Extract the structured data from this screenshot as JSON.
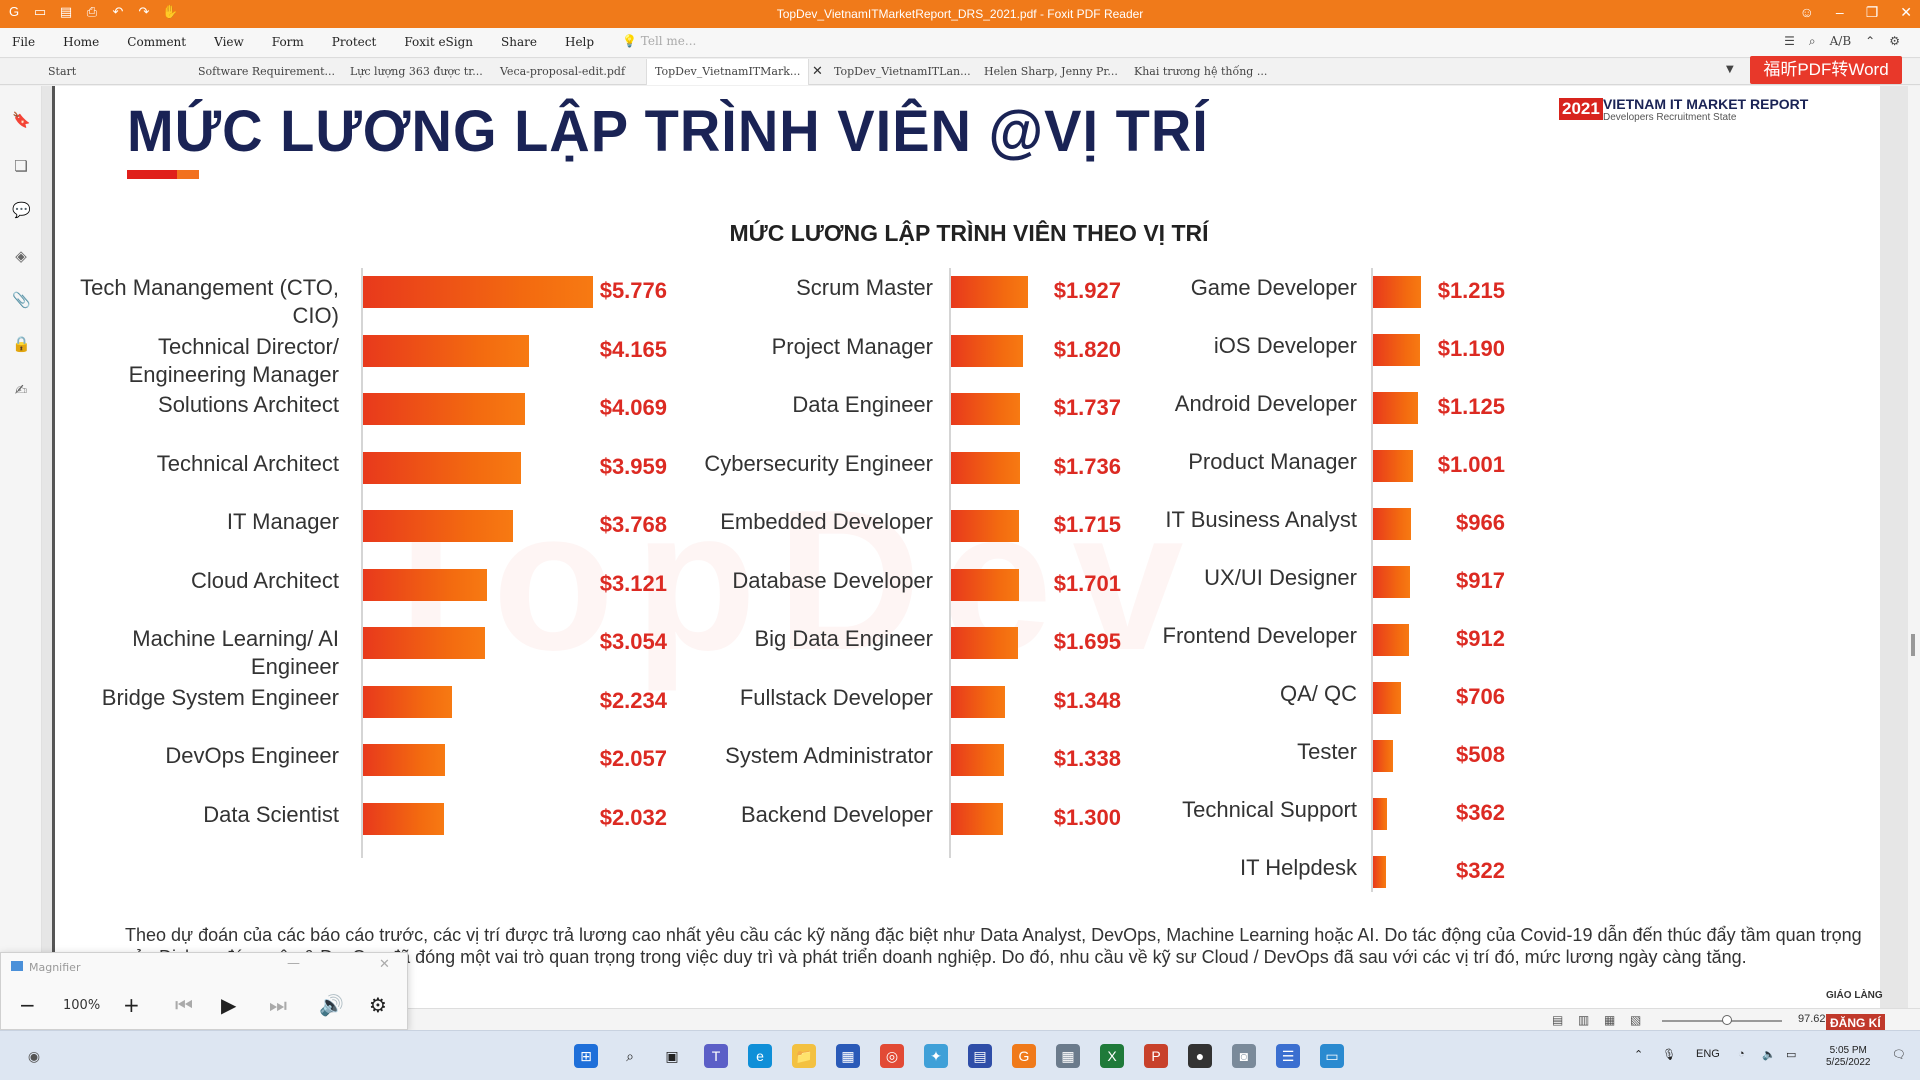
{
  "window": {
    "title": "TopDev_VietnamITMarketReport_DRS_2021.pdf - Foxit PDF Reader"
  },
  "menu": {
    "items": [
      "File",
      "Home",
      "Comment",
      "View",
      "Form",
      "Protect",
      "Foxit eSign",
      "Share",
      "Help"
    ],
    "tell_me": "Tell me...",
    "find_label": "A/B"
  },
  "tabs": {
    "items": [
      "Start",
      "Software Requirement...",
      "Lực lượng 363 được tr...",
      "Veca-proposal-edit.pdf",
      "TopDev_VietnamITMark...",
      "TopDev_VietnamITLan...",
      "Helen Sharp, Jenny Pr...",
      "Khai trương hệ thống ..."
    ],
    "active_index": 4
  },
  "convert_button": "福昕PDF转Word",
  "page": {
    "heading": "MỨC LƯƠNG LẬP TRÌNH VIÊN @VỊ TRÍ",
    "logo_year": "2021",
    "logo_line1": "VIETNAM IT MARKET REPORT",
    "logo_line2": "Developers Recruitment State",
    "footer_text": "Theo dự đoán của các báo cáo trước, các vị trí được trả lương cao nhất yêu cầu các kỹ năng đặc biệt như Data Analyst, DevOps, Machine Learning hoặc AI. Do tác động của Covid-19 dẫn đến thúc đẩy tầm quan trọng của Dịch vụ đám mây & DevOps đã đóng một vai trò quan trọng trong việc duy trì và phát triển doanh nghiệp. Do đó, nhu cầu về kỹ sư Cloud / DevOps đã sau với các vị trí đó, mức lương ngày càng tăng."
  },
  "chart_data": {
    "type": "bar",
    "orientation": "horizontal",
    "title": "MỨC LƯƠNG LẬP TRÌNH VIÊN THEO VỊ TRÍ",
    "unit": "$",
    "max_value": 5.776,
    "columns": [
      {
        "categories": [
          "Tech Manangement (CTO, CIO)",
          "Technical Director/ Engineering Manager",
          "Solutions Architect",
          "Technical Architect",
          "IT Manager",
          "Cloud Architect",
          "Machine Learning/ AI Engineer",
          "Bridge System Engineer",
          "DevOps Engineer",
          "Data Scientist"
        ],
        "values": [
          5.776,
          4.165,
          4.069,
          3.959,
          3.768,
          3.121,
          3.054,
          2.234,
          2.057,
          2.032
        ],
        "labels": [
          "$5.776",
          "$4.165",
          "$4.069",
          "$3.959",
          "$3.768",
          "$3.121",
          "$3.054",
          "$2.234",
          "$2.057",
          "$2.032"
        ]
      },
      {
        "categories": [
          "Scrum Master",
          "Project Manager",
          "Data Engineer",
          "Cybersecurity Engineer",
          "Embedded Developer",
          "Database Developer",
          "Big Data Engineer",
          "Fullstack Developer",
          "System Administrator",
          "Backend Developer"
        ],
        "values": [
          1.927,
          1.82,
          1.737,
          1.736,
          1.715,
          1.701,
          1.695,
          1.348,
          1.338,
          1.3
        ],
        "labels": [
          "$1.927",
          "$1.820",
          "$1.737",
          "$1.736",
          "$1.715",
          "$1.701",
          "$1.695",
          "$1.348",
          "$1.338",
          "$1.300"
        ]
      },
      {
        "categories": [
          "Game Developer",
          "iOS Developer",
          "Android Developer",
          "Product Manager",
          "IT Business Analyst",
          "UX/UI Designer",
          "Frontend Developer",
          "QA/ QC",
          "Tester",
          "Technical Support",
          "IT Helpdesk"
        ],
        "values": [
          1.215,
          1.19,
          1.125,
          1.001,
          0.966,
          0.917,
          0.912,
          0.706,
          0.508,
          0.362,
          0.322
        ],
        "labels": [
          "$1.215",
          "$1.190",
          "$1.125",
          "$1.001",
          "$966",
          "$917",
          "$912",
          "$706",
          "$508",
          "$362",
          "$322"
        ]
      }
    ]
  },
  "magnifier": {
    "title": "Magnifier",
    "zoom": "100%"
  },
  "statusbar": {
    "zoom": "97.62%"
  },
  "taskbar": {
    "lang": "ENG",
    "time": "5:05 PM",
    "date": "5/25/2022"
  },
  "brand": {
    "line1": "GIÁO LÀNG",
    "line2": "ĐĂNG KÍ"
  }
}
